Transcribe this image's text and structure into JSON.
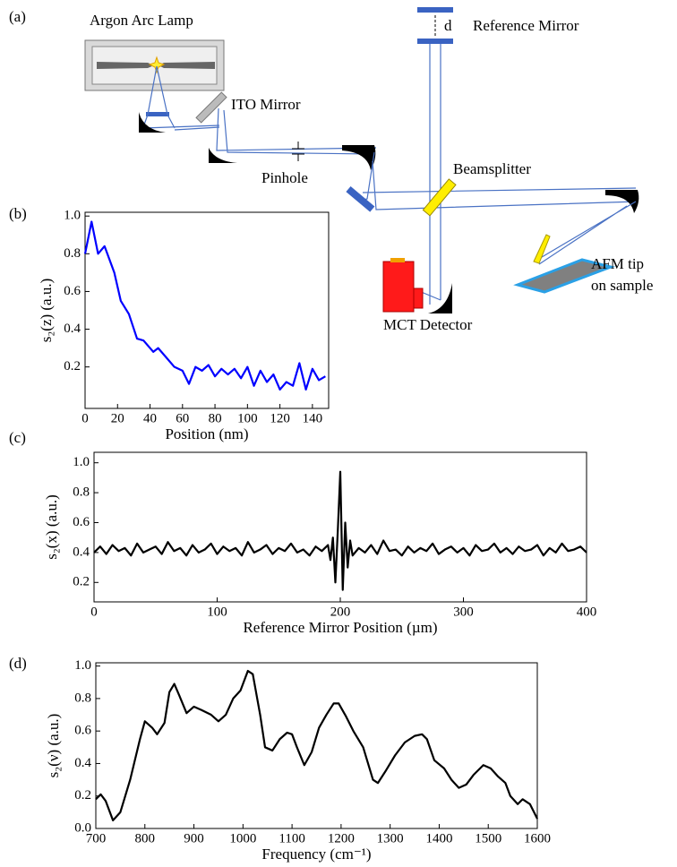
{
  "panels": [
    "(a)",
    "(b)",
    "(c)",
    "(d)"
  ],
  "diagram": {
    "lamp": "Argon Arc Lamp",
    "ito_mirror": "ITO Mirror",
    "pinhole": "Pinhole",
    "gap": "d",
    "reference_mirror": "Reference Mirror",
    "beamsplitter": "Beamsplitter",
    "sample": [
      "AFM tip",
      "on sample"
    ],
    "detector": "MCT Detector"
  },
  "chart_data": [
    {
      "type": "line",
      "color": "#0000ff",
      "xlabel": "Position (nm)",
      "ylabel": "s₂(z) (a.u.)",
      "x": [
        0,
        4,
        8,
        12,
        18,
        22,
        27,
        32,
        36,
        42,
        45,
        50,
        55,
        60,
        64,
        68,
        72,
        76,
        80,
        84,
        88,
        92,
        96,
        100,
        104,
        108,
        112,
        116,
        120,
        124,
        128,
        132,
        136,
        140,
        144,
        148
      ],
      "values": [
        0.8,
        0.97,
        0.8,
        0.84,
        0.7,
        0.55,
        0.48,
        0.35,
        0.34,
        0.28,
        0.3,
        0.25,
        0.2,
        0.18,
        0.11,
        0.2,
        0.18,
        0.21,
        0.15,
        0.19,
        0.16,
        0.19,
        0.14,
        0.2,
        0.1,
        0.18,
        0.12,
        0.16,
        0.08,
        0.12,
        0.1,
        0.22,
        0.08,
        0.19,
        0.13,
        0.15
      ],
      "xlim": [
        0,
        150
      ],
      "ylim": [
        -0.02,
        1.02
      ],
      "xticks": [
        0,
        20,
        40,
        60,
        80,
        100,
        120,
        140
      ],
      "yticks": [
        0.2,
        0.4,
        0.6,
        0.8,
        {
          "value": 1,
          "label": "1.0"
        }
      ]
    },
    {
      "type": "line",
      "color": "#000000",
      "xlabel": "Reference Mirror Position (µm)",
      "ylabel": "s₂(x) (a.u.)",
      "x": [
        0,
        5,
        10,
        15,
        20,
        25,
        30,
        35,
        40,
        45,
        50,
        55,
        60,
        65,
        70,
        75,
        80,
        85,
        90,
        95,
        100,
        105,
        110,
        115,
        120,
        125,
        130,
        135,
        140,
        145,
        150,
        155,
        160,
        165,
        170,
        175,
        180,
        185,
        190,
        192,
        194,
        196,
        198,
        200,
        202,
        204,
        206,
        208,
        210,
        215,
        220,
        225,
        230,
        235,
        240,
        245,
        250,
        255,
        260,
        265,
        270,
        275,
        280,
        285,
        290,
        295,
        300,
        305,
        310,
        315,
        320,
        325,
        330,
        335,
        340,
        345,
        350,
        355,
        360,
        365,
        370,
        375,
        380,
        385,
        390,
        395,
        400
      ],
      "values": [
        0.4,
        0.44,
        0.39,
        0.45,
        0.41,
        0.43,
        0.38,
        0.46,
        0.4,
        0.42,
        0.44,
        0.39,
        0.47,
        0.41,
        0.43,
        0.38,
        0.45,
        0.4,
        0.42,
        0.46,
        0.39,
        0.44,
        0.41,
        0.43,
        0.38,
        0.47,
        0.4,
        0.42,
        0.45,
        0.39,
        0.43,
        0.41,
        0.46,
        0.4,
        0.42,
        0.38,
        0.44,
        0.41,
        0.45,
        0.35,
        0.5,
        0.2,
        0.55,
        0.94,
        0.15,
        0.6,
        0.3,
        0.48,
        0.38,
        0.43,
        0.4,
        0.45,
        0.39,
        0.48,
        0.41,
        0.42,
        0.38,
        0.44,
        0.4,
        0.43,
        0.41,
        0.46,
        0.39,
        0.42,
        0.44,
        0.4,
        0.43,
        0.38,
        0.45,
        0.41,
        0.42,
        0.46,
        0.4,
        0.43,
        0.39,
        0.44,
        0.41,
        0.42,
        0.45,
        0.38,
        0.43,
        0.4,
        0.46,
        0.41,
        0.42,
        0.44,
        0.4
      ],
      "xlim": [
        0,
        400
      ],
      "ylim": [
        0.07,
        1.07
      ],
      "xticks": [
        0,
        100,
        200,
        300,
        400
      ],
      "yticks": [
        0.2,
        0.4,
        0.6,
        0.8,
        {
          "value": 1,
          "label": "1.0"
        }
      ]
    },
    {
      "type": "line",
      "color": "#000000",
      "xlabel": "Frequency (cm⁻¹)",
      "ylabel": "s₂(ν) (a.u.)",
      "x": [
        700,
        710,
        720,
        735,
        750,
        770,
        790,
        800,
        815,
        825,
        840,
        850,
        860,
        870,
        885,
        900,
        915,
        935,
        950,
        965,
        980,
        995,
        1010,
        1020,
        1035,
        1045,
        1060,
        1075,
        1090,
        1100,
        1110,
        1125,
        1140,
        1155,
        1170,
        1185,
        1195,
        1210,
        1225,
        1245,
        1265,
        1275,
        1290,
        1310,
        1330,
        1350,
        1365,
        1375,
        1390,
        1410,
        1425,
        1440,
        1455,
        1470,
        1490,
        1505,
        1520,
        1535,
        1545,
        1560,
        1570,
        1585,
        1600
      ],
      "values": [
        0.18,
        0.21,
        0.17,
        0.05,
        0.1,
        0.3,
        0.55,
        0.66,
        0.62,
        0.58,
        0.65,
        0.84,
        0.89,
        0.82,
        0.71,
        0.75,
        0.73,
        0.7,
        0.66,
        0.7,
        0.8,
        0.85,
        0.97,
        0.95,
        0.7,
        0.5,
        0.48,
        0.55,
        0.59,
        0.58,
        0.5,
        0.39,
        0.47,
        0.62,
        0.7,
        0.77,
        0.77,
        0.69,
        0.6,
        0.5,
        0.3,
        0.28,
        0.35,
        0.45,
        0.53,
        0.57,
        0.58,
        0.55,
        0.42,
        0.37,
        0.3,
        0.25,
        0.27,
        0.33,
        0.39,
        0.37,
        0.32,
        0.28,
        0.2,
        0.15,
        0.18,
        0.15,
        0.06
      ],
      "xlim": [
        700,
        1600
      ],
      "ylim": [
        0,
        1.02
      ],
      "xticks": [
        700,
        800,
        900,
        1000,
        1100,
        1200,
        1300,
        1400,
        1500,
        1600
      ],
      "yticks": [
        {
          "value": 0,
          "label": "0.0"
        },
        0.2,
        0.4,
        0.6,
        0.8,
        {
          "value": 1,
          "label": "1.0"
        }
      ]
    }
  ]
}
